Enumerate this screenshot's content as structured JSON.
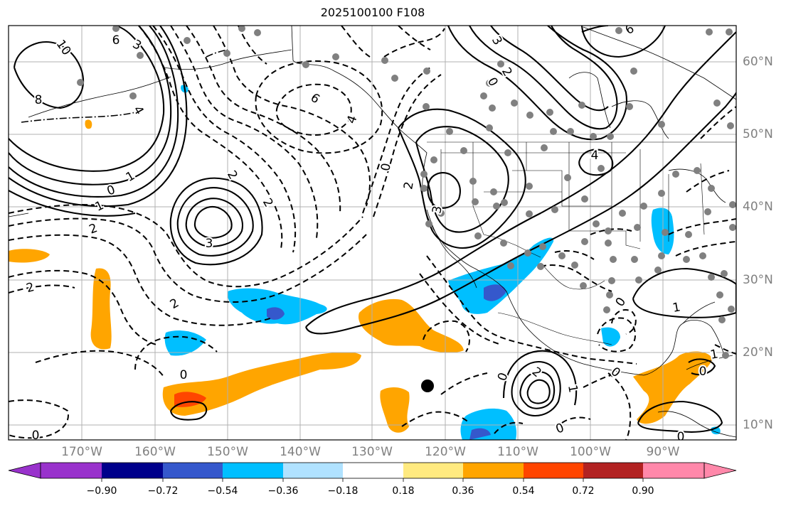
{
  "title": "2025100100 F108",
  "lon_labels": [
    "170°W",
    "160°W",
    "150°W",
    "140°W",
    "130°W",
    "120°W",
    "110°W",
    "100°W",
    "90°W"
  ],
  "lat_labels": [
    "60°N",
    "50°N",
    "40°N",
    "30°N",
    "20°N",
    "10°N"
  ],
  "contour_labels": [
    {
      "text": "10",
      "id": "c1"
    },
    {
      "text": "6",
      "id": "c2"
    },
    {
      "text": "3",
      "id": "c3"
    },
    {
      "text": "8",
      "id": "c4"
    },
    {
      "text": "4",
      "id": "c5"
    },
    {
      "text": "6",
      "id": "c6"
    },
    {
      "text": "4",
      "id": "c7"
    },
    {
      "text": "0",
      "id": "c8"
    },
    {
      "text": "1",
      "id": "c9"
    },
    {
      "text": "2",
      "id": "c10"
    },
    {
      "text": "1",
      "id": "c11"
    },
    {
      "text": "3",
      "id": "c12"
    },
    {
      "text": "2",
      "id": "c13"
    },
    {
      "text": "2",
      "id": "c14"
    },
    {
      "text": "2",
      "id": "c15"
    },
    {
      "text": "2",
      "id": "c16"
    },
    {
      "text": "0",
      "id": "c17"
    },
    {
      "text": "0",
      "id": "c18"
    },
    {
      "text": "3",
      "id": "c19"
    },
    {
      "text": "3",
      "id": "c20"
    },
    {
      "text": "0",
      "id": "c21"
    },
    {
      "text": "2",
      "id": "c22"
    },
    {
      "text": "4",
      "id": "c23"
    },
    {
      "text": "6",
      "id": "c24"
    },
    {
      "text": "2",
      "id": "c25"
    },
    {
      "text": "0",
      "id": "c26"
    },
    {
      "text": "2",
      "id": "c27"
    },
    {
      "text": "0",
      "id": "c28"
    },
    {
      "text": "1",
      "id": "c29"
    },
    {
      "text": "0",
      "id": "c30"
    },
    {
      "text": "0",
      "id": "c31"
    },
    {
      "text": "1",
      "id": "c32"
    },
    {
      "text": "0",
      "id": "c33"
    },
    {
      "text": "1",
      "id": "c34"
    },
    {
      "text": "0",
      "id": "c35"
    },
    {
      "text": "0",
      "id": "c36"
    }
  ],
  "colorbar": {
    "colors": [
      "#9932cc",
      "#00008b",
      "#3558cc",
      "#00bfff",
      "#b0e2ff",
      "#ffffff",
      "#ffea80",
      "#ffa500",
      "#ff4500",
      "#b22222",
      "#ff88aa"
    ],
    "labels": [
      "−0.90",
      "−0.72",
      "−0.54",
      "−0.36",
      "−0.18",
      "0.18",
      "0.36",
      "0.54",
      "0.72",
      "0.90"
    ]
  },
  "fill_colors": {
    "orange": "#ffa500",
    "red": "#ff4500",
    "cyan": "#00bfff",
    "blue": "#3558cc",
    "dot": "#808080"
  }
}
